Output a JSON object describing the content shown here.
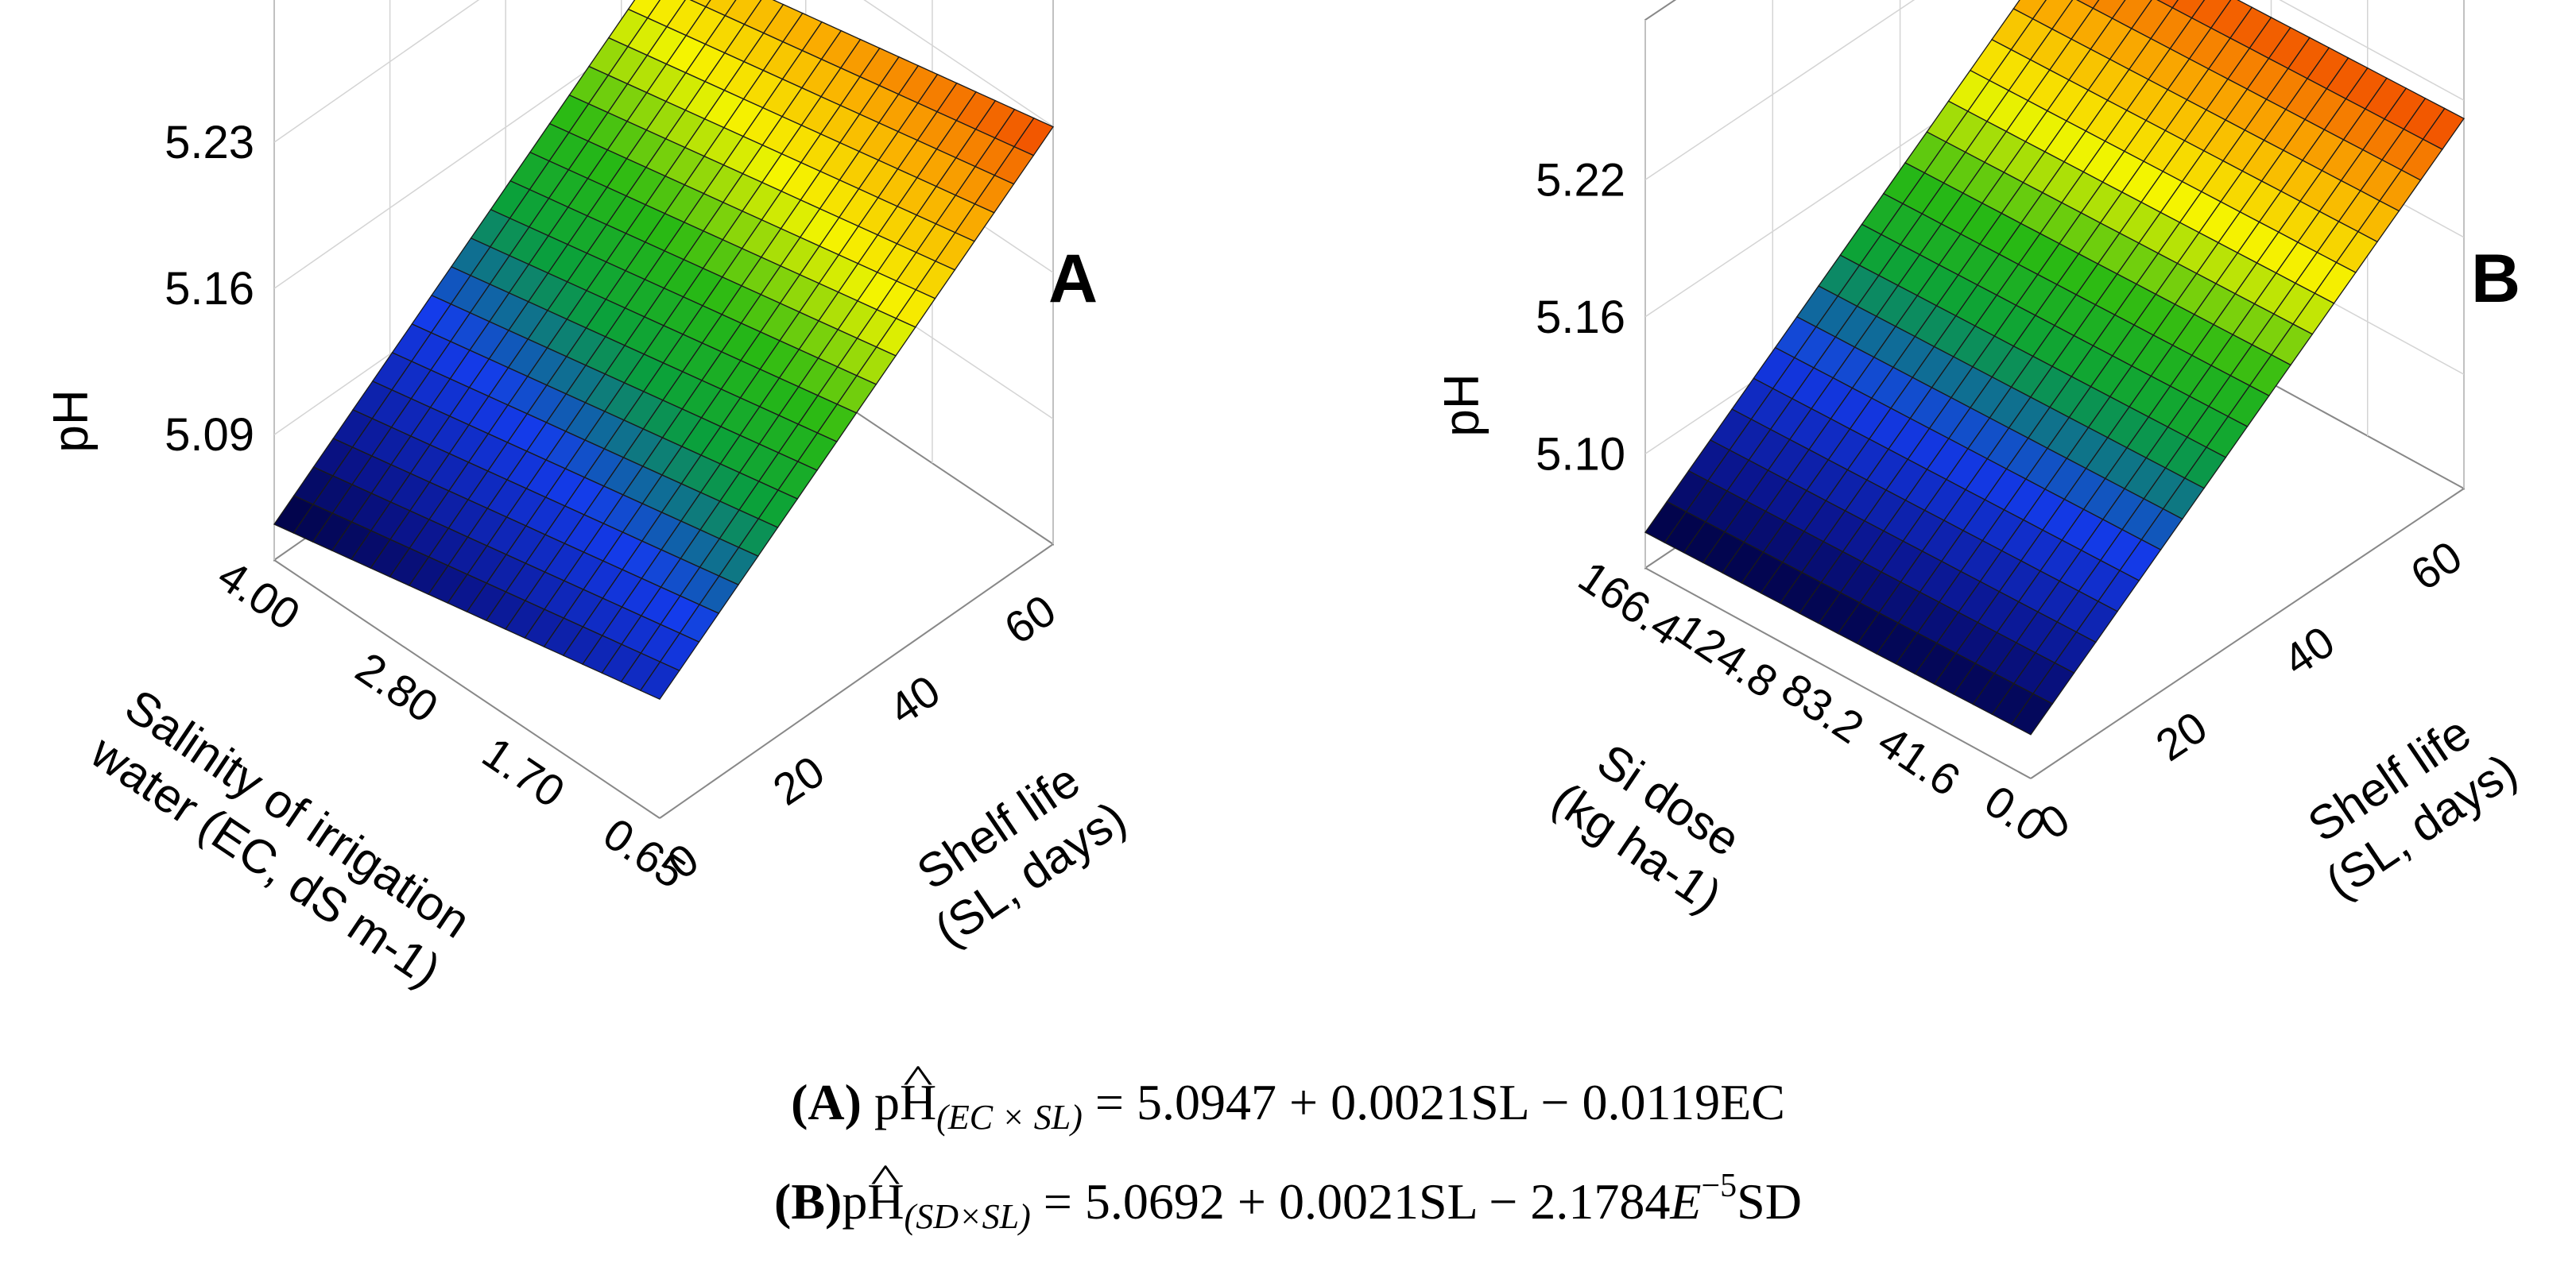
{
  "chart_data": [
    {
      "type": "surface3d",
      "panel_label": "A",
      "z_label": "pH",
      "z_ticks": [
        "5.09",
        "5.16",
        "5.23"
      ],
      "z_tick_values": [
        5.09,
        5.16,
        5.23
      ],
      "z_range": [
        5.03,
        5.3
      ],
      "x_label_lines": [
        "Salinity of irrigation",
        "water (EC, dS m-1)"
      ],
      "x_label_superscript": "-1",
      "x_ticks": [
        "0.65",
        "1.70",
        "2.80",
        "4.00"
      ],
      "x_range": [
        0.65,
        4.0
      ],
      "y_label_lines": [
        "Shelf life",
        "(SL, days)"
      ],
      "y_ticks": [
        "0",
        "20",
        "40",
        "60"
      ],
      "y_range": [
        0,
        68
      ],
      "model": {
        "intercept": 5.0947,
        "sl_coef": 0.0021,
        "x_coef": -0.0119
      }
    },
    {
      "type": "surface3d",
      "panel_label": "B",
      "z_label": "pH",
      "z_ticks": [
        "5.10",
        "5.16",
        "5.22"
      ],
      "z_tick_values": [
        5.1,
        5.16,
        5.22
      ],
      "z_range": [
        5.05,
        5.29
      ],
      "x_label_lines": [
        "Si dose",
        "(kg ha-1)"
      ],
      "x_label_superscript": "-1",
      "x_ticks": [
        "0.0",
        "41.6",
        "83.2",
        "124.8",
        "166.4"
      ],
      "x_range": [
        0,
        166.4
      ],
      "y_label_lines": [
        "Shelf life",
        "(SL, days)"
      ],
      "y_ticks": [
        "0",
        "20",
        "40",
        "60"
      ],
      "y_range": [
        0,
        68
      ],
      "model": {
        "intercept": 5.0692,
        "sl_coef": 0.0021,
        "x_coef": -2.1784e-05
      }
    }
  ],
  "equations": [
    {
      "label": "(A)",
      "lhs": "pH",
      "subscript": "(EC × SL)",
      "rhs": "= 5.0947 + 0.0021SL − 0.0119EC"
    },
    {
      "label": "(B)",
      "lhs": "pH",
      "subscript": "(SD×SL)",
      "rhs_start": "= 5.0692 + 0.0021SL − 2.1784",
      "rhs_exp_base": "E",
      "rhs_exp": "−5",
      "rhs_end": "SD"
    }
  ]
}
